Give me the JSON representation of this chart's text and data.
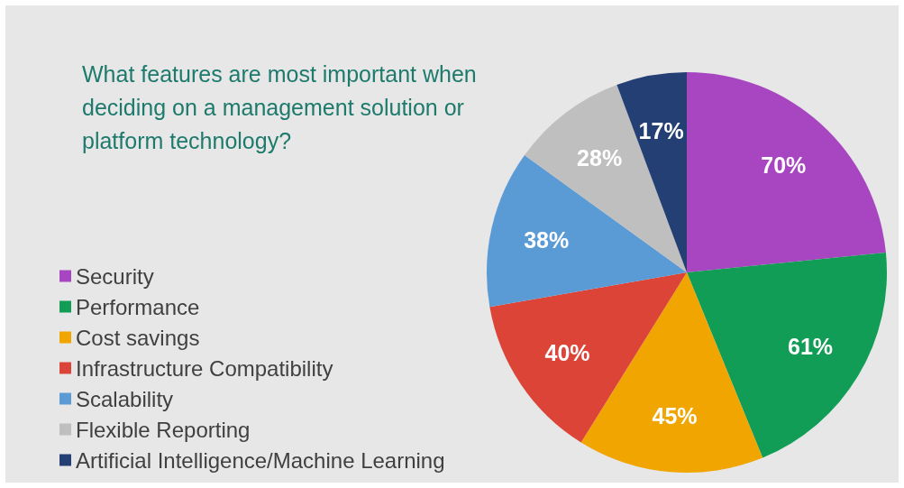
{
  "chart_data": {
    "type": "pie",
    "title": "What features are most important when deciding on a management solution or platform technology?",
    "categories": [
      "Security",
      "Performance",
      "Cost savings",
      "Infrastructure Compatibility",
      "Scalability",
      "Flexible Reporting",
      "Artificial Intelligence/Machine Learning"
    ],
    "values": [
      70,
      61,
      45,
      40,
      38,
      28,
      17
    ],
    "colors": [
      "#a845c1",
      "#129d56",
      "#f0a500",
      "#dc4437",
      "#5b9bd5",
      "#bfbfbf",
      "#243f74"
    ],
    "value_labels": [
      "70%",
      "61%",
      "45%",
      "40%",
      "38%",
      "28%",
      "17%"
    ],
    "legend": "bottom left"
  }
}
